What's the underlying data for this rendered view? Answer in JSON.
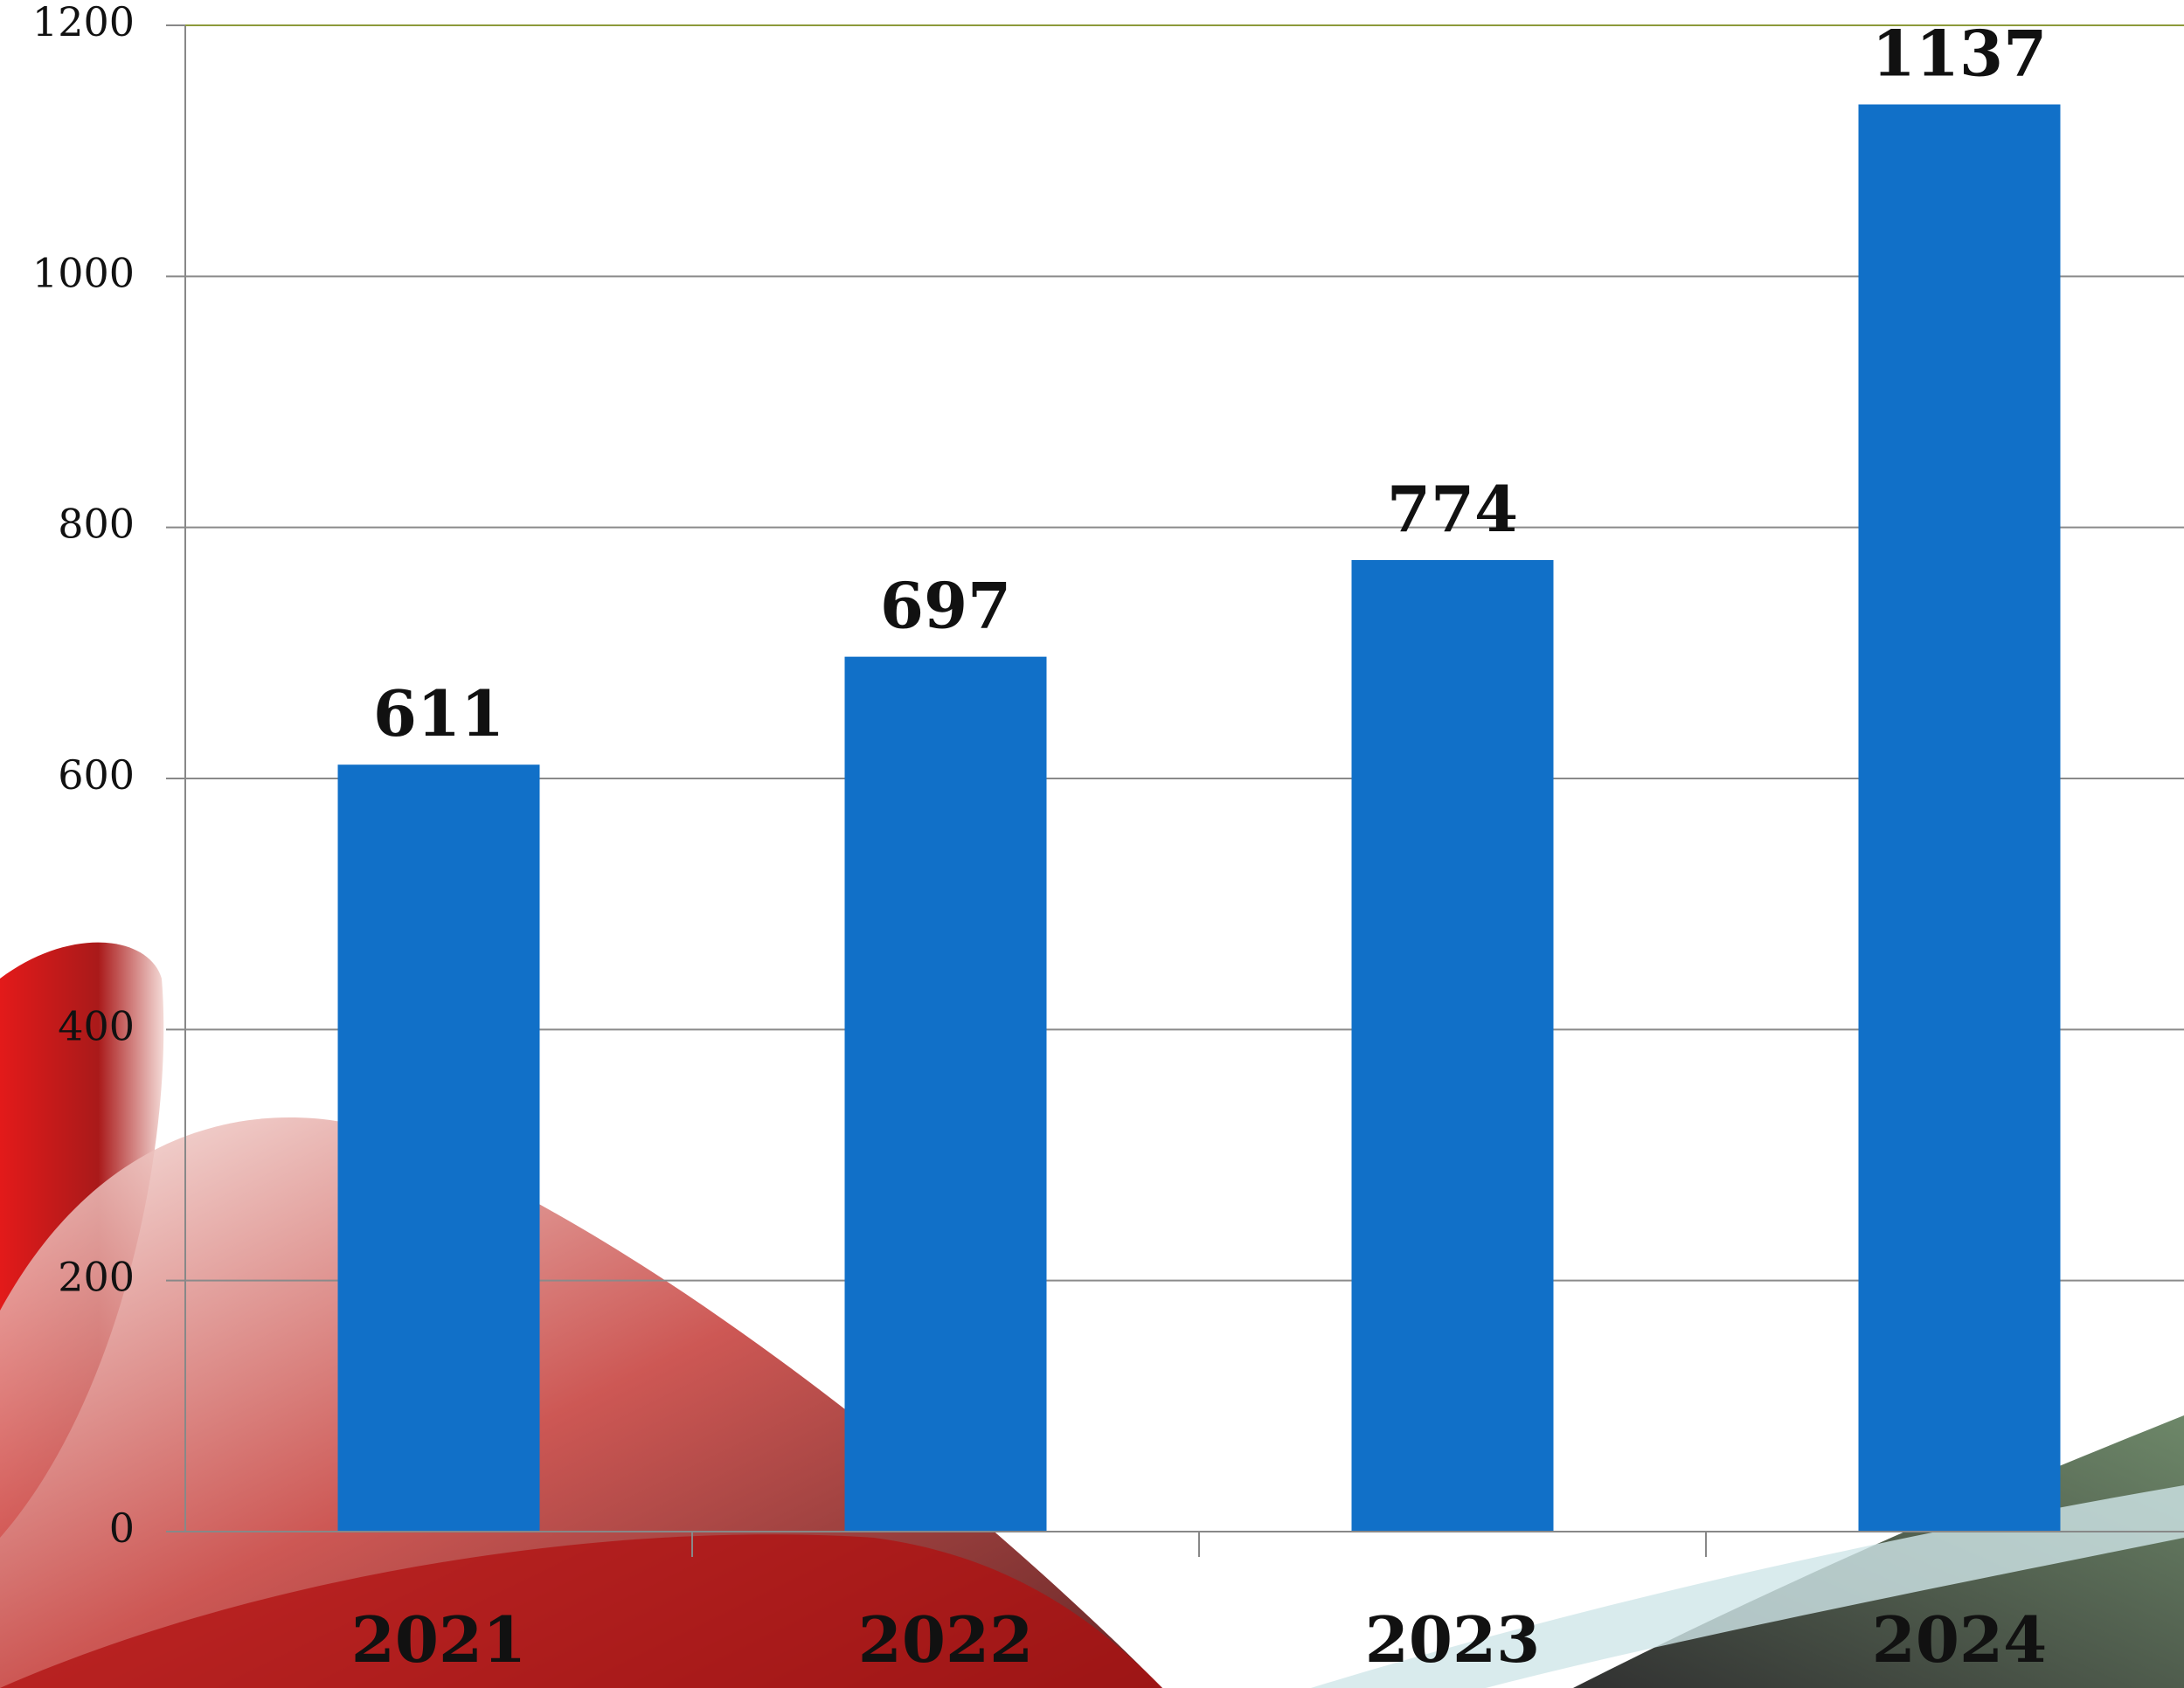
{
  "chart_data": {
    "type": "bar",
    "categories": [
      "2021",
      "2022",
      "2023",
      "2024"
    ],
    "values": [
      611,
      697,
      774,
      1137
    ],
    "color": "#1170c8",
    "ylim": [
      0,
      1200
    ],
    "yticks": [
      0,
      200,
      400,
      600,
      800,
      1000,
      1200
    ],
    "grid": true
  }
}
